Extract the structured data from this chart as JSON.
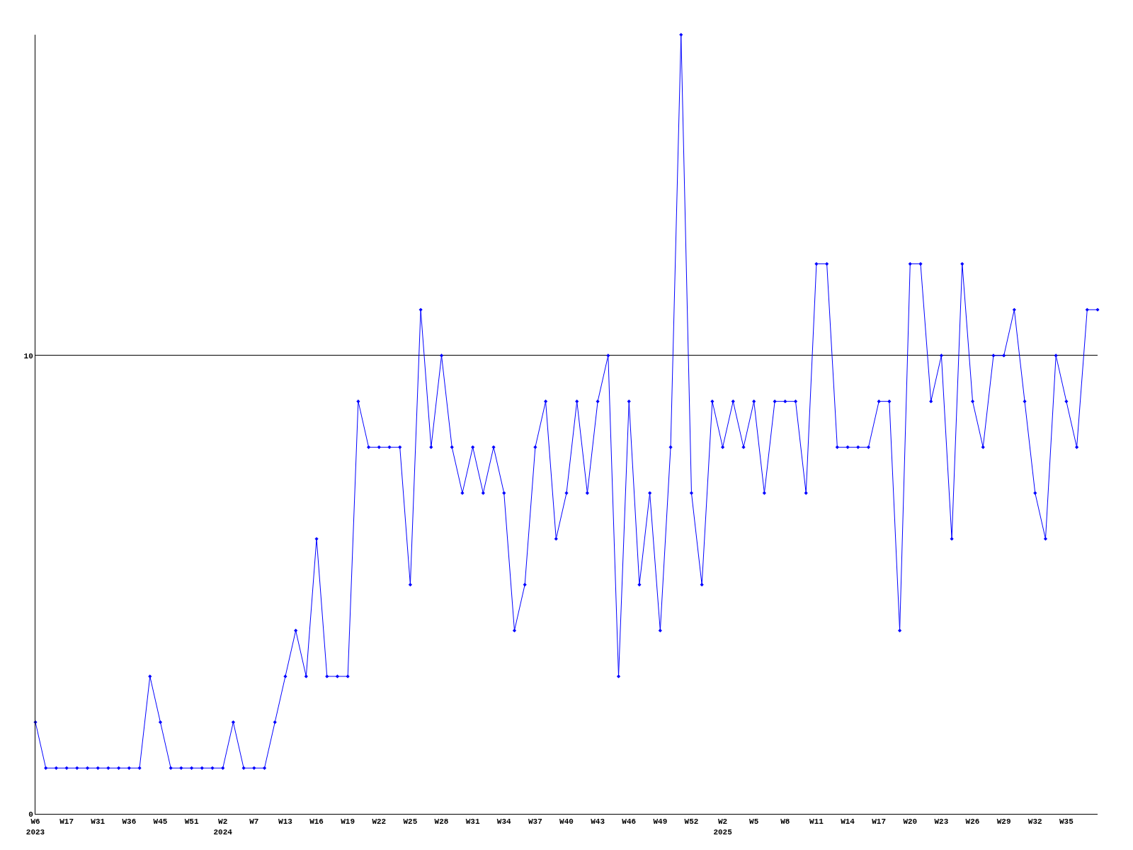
{
  "chart_data": {
    "type": "line",
    "categories": [
      "W6\n2023",
      null,
      null,
      "W17",
      null,
      null,
      "W31",
      null,
      null,
      "W36",
      null,
      null,
      "W45",
      null,
      null,
      "W51",
      null,
      null,
      "W2\n2024",
      null,
      null,
      "W7",
      null,
      null,
      "W13",
      null,
      null,
      "W16",
      null,
      null,
      "W19",
      null,
      null,
      "W22",
      null,
      null,
      "W25",
      null,
      null,
      "W28",
      null,
      null,
      "W31",
      null,
      null,
      "W34",
      null,
      null,
      "W37",
      null,
      null,
      "W40",
      null,
      null,
      "W43",
      null,
      null,
      "W46",
      null,
      null,
      "W49",
      null,
      null,
      "W52",
      null,
      null,
      "W2\n2025",
      null,
      null,
      "W5",
      null,
      null,
      "W8",
      null,
      null,
      "W11",
      null,
      null,
      "W14",
      null,
      null,
      "W17",
      null,
      null,
      "W20",
      null,
      null,
      "W23",
      null,
      null,
      "W26",
      null,
      null,
      "W29",
      null,
      null,
      "W32",
      null,
      null,
      "W35",
      null,
      null,
      null
    ],
    "values": [
      2,
      1,
      1,
      1,
      1,
      1,
      1,
      1,
      1,
      1,
      1,
      3,
      2,
      1,
      1,
      1,
      1,
      1,
      1,
      2,
      1,
      1,
      1,
      2,
      3,
      4,
      3,
      6,
      3,
      3,
      3,
      9,
      8,
      8,
      8,
      8,
      5,
      11,
      8,
      10,
      8,
      7,
      8,
      7,
      8,
      7,
      4,
      5,
      8,
      9,
      6,
      7,
      9,
      7,
      9,
      10,
      3,
      9,
      5,
      7,
      4,
      8,
      17,
      7,
      5,
      9,
      8,
      9,
      8,
      9,
      7,
      9,
      9,
      9,
      7,
      12,
      12,
      8,
      8,
      8,
      8,
      9,
      9,
      4,
      12,
      12,
      9,
      10,
      6,
      12,
      9,
      8,
      10,
      10,
      11,
      9,
      7,
      6,
      10,
      9,
      8,
      11,
      11
    ],
    "color": "#0000ff",
    "marker": "diamond",
    "line_style": "solid",
    "ylim": [
      0,
      17
    ],
    "yticks": [
      0,
      10
    ],
    "grid": "y"
  }
}
